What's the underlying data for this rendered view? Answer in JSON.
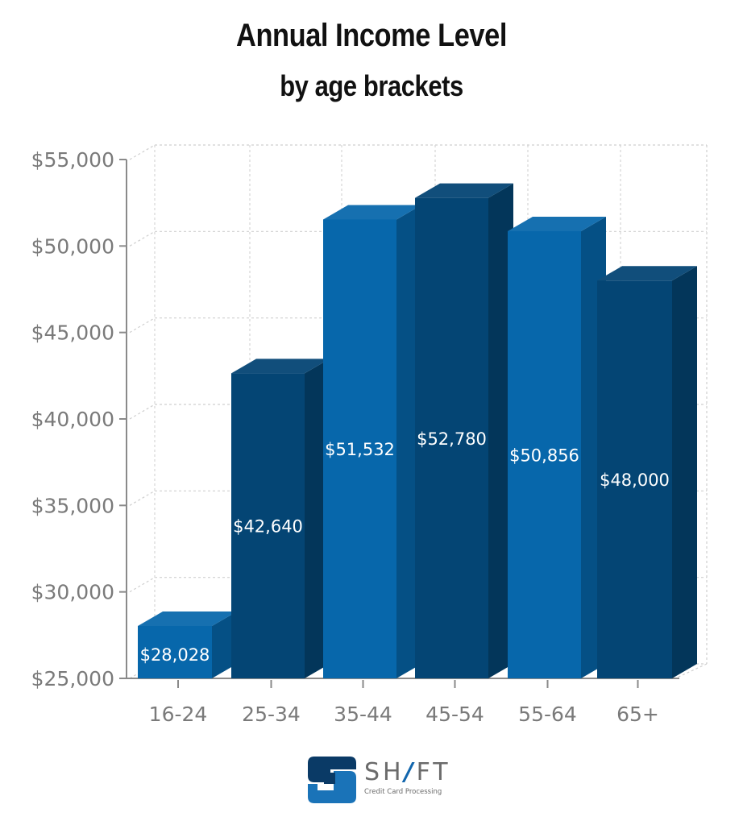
{
  "title": "Annual Income Level",
  "subtitle": "by age brackets",
  "chart_data": {
    "type": "bar",
    "style": "3d-column",
    "title": "Annual Income Level",
    "subtitle": "by age brackets",
    "xlabel": "",
    "ylabel": "",
    "categories": [
      "16-24",
      "25-34",
      "35-44",
      "45-54",
      "55-64",
      "65+"
    ],
    "values": [
      28028,
      42640,
      51532,
      52780,
      50856,
      48000
    ],
    "value_labels": [
      "$28,028",
      "$42,640",
      "$51,532",
      "$52,780",
      "$50,856",
      "$48,000"
    ],
    "ylim": [
      25000,
      55000
    ],
    "yticks": [
      25000,
      30000,
      35000,
      40000,
      45000,
      50000,
      55000
    ],
    "ytick_labels": [
      "$25,000",
      "$30,000",
      "$35,000",
      "$40,000",
      "$45,000",
      "$50,000",
      "$55,000"
    ],
    "grid": true,
    "legend": null,
    "colors": [
      "#0767ab",
      "#044574",
      "#0767ab",
      "#044574",
      "#0767ab",
      "#044574"
    ]
  },
  "logo": {
    "name_left": "SH",
    "name_slash": "/",
    "name_right": "FT",
    "tagline": "Credit Card Processing",
    "colors": {
      "dark": "#0a3a66",
      "light": "#1a73b8",
      "text": "#6b6b6b"
    }
  }
}
